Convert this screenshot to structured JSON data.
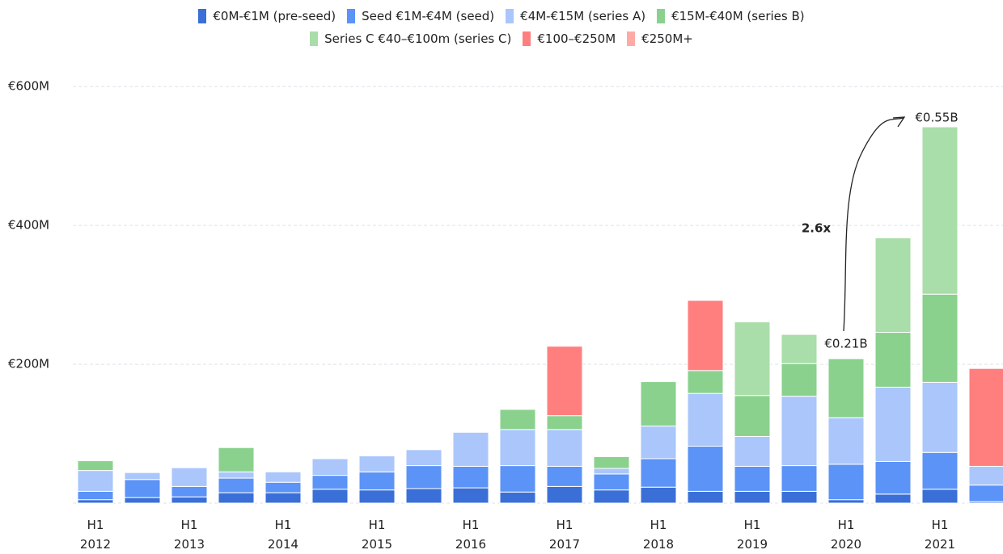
{
  "chart_data": {
    "type": "stacked_bar",
    "categories": [
      "H1 2012",
      null,
      "H1 2013",
      null,
      "H1 2014",
      null,
      "H1 2015",
      null,
      "H1 2016",
      null,
      "H1 2017",
      null,
      "H1 2018",
      null,
      "H1 2019",
      null,
      "H1 2020",
      null,
      "H1 2021",
      null
    ],
    "series": [
      {
        "name": "€0M-€1M  (pre-seed)",
        "color": "#3a6fd8",
        "values": [
          5,
          8,
          9,
          15,
          15,
          20,
          19,
          21,
          22,
          16,
          24,
          19,
          23,
          17,
          17,
          17,
          5,
          13,
          20,
          2
        ]
      },
      {
        "name": "Seed €1M-€4M (seed)",
        "color": "#5b93f7",
        "values": [
          12,
          26,
          15,
          21,
          15,
          20,
          26,
          33,
          31,
          38,
          29,
          23,
          41,
          65,
          36,
          37,
          51,
          47,
          53,
          24
        ]
      },
      {
        "name": "€4M-€15M (series A)",
        "color": "#aac6fb",
        "values": [
          30,
          10,
          27,
          9,
          15,
          24,
          23,
          23,
          49,
          52,
          53,
          8,
          47,
          76,
          43,
          100,
          67,
          107,
          101,
          27
        ]
      },
      {
        "name": "€15M-€40M (series B)",
        "color": "#8ad18e",
        "values": [
          14,
          0,
          0,
          35,
          0,
          0,
          0,
          0,
          0,
          29,
          20,
          17,
          64,
          33,
          59,
          47,
          85,
          79,
          127,
          0
        ]
      },
      {
        "name": "Series C €40–€100m (series C)",
        "color": "#a9dda9",
        "values": [
          0,
          0,
          0,
          0,
          0,
          0,
          0,
          0,
          0,
          0,
          0,
          0,
          0,
          0,
          106,
          42,
          0,
          136,
          241,
          0
        ]
      },
      {
        "name": "€100–€250M",
        "color": "#ff7f7f",
        "values": [
          0,
          0,
          0,
          0,
          0,
          0,
          0,
          0,
          0,
          0,
          100,
          0,
          0,
          101,
          0,
          0,
          0,
          0,
          0,
          141
        ]
      },
      {
        "name": "€250M+",
        "color": "#ffaaa5",
        "values": [
          0,
          0,
          0,
          0,
          0,
          0,
          0,
          0,
          0,
          0,
          0,
          0,
          0,
          0,
          0,
          0,
          0,
          0,
          0,
          0
        ]
      }
    ],
    "ylim": [
      0,
      620
    ],
    "yticks": [
      {
        "value": 200,
        "label": "€200M"
      },
      {
        "value": 400,
        "label": "€400M"
      },
      {
        "value": 600,
        "label": "€600M"
      }
    ],
    "grid": true,
    "annotations": [
      "€0.21B",
      "€0.55B",
      "2.6x"
    ]
  }
}
